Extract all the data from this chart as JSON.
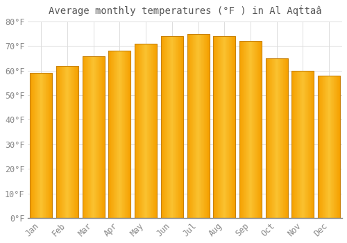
{
  "title": "Average monthly temperatures (°F ) in Al Aqṫtaâ",
  "months": [
    "Jan",
    "Feb",
    "Mar",
    "Apr",
    "May",
    "Jun",
    "Jul",
    "Aug",
    "Sep",
    "Oct",
    "Nov",
    "Dec"
  ],
  "values": [
    59,
    62,
    66,
    68,
    71,
    74,
    75,
    74,
    72,
    65,
    60,
    58
  ],
  "bar_color_center": "#FFD060",
  "bar_color_edge": "#F5A000",
  "ylim": [
    0,
    80
  ],
  "yticks": [
    0,
    10,
    20,
    30,
    40,
    50,
    60,
    70,
    80
  ],
  "ytick_labels": [
    "0°F",
    "10°F",
    "20°F",
    "30°F",
    "40°F",
    "50°F",
    "60°F",
    "70°F",
    "80°F"
  ],
  "background_color": "#FFFFFF",
  "grid_color": "#DDDDDD",
  "title_fontsize": 10,
  "tick_fontsize": 8.5,
  "bar_width": 0.85
}
